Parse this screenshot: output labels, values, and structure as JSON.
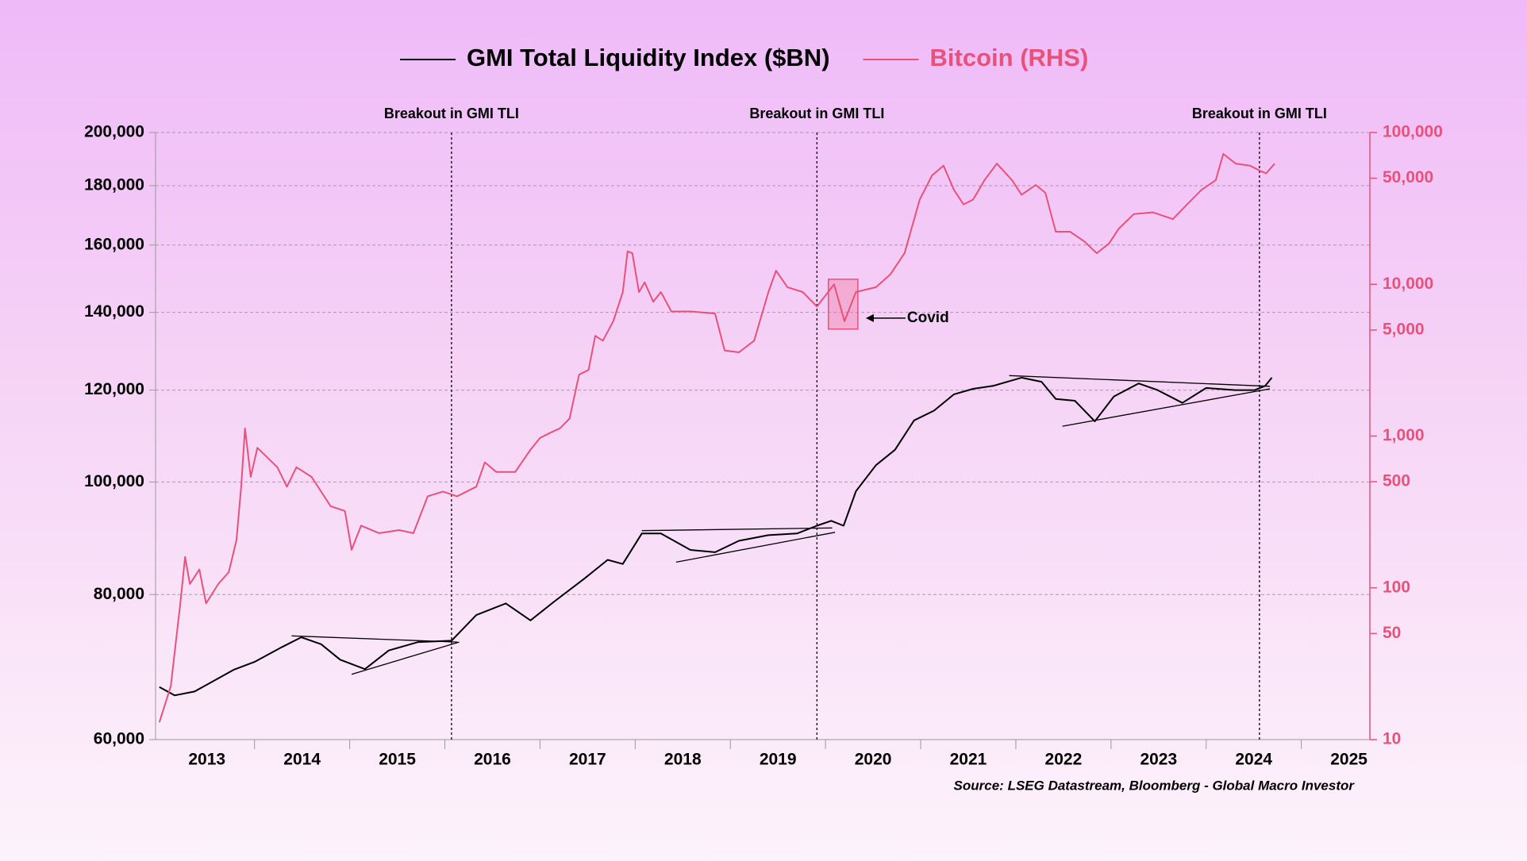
{
  "chart_data": {
    "type": "line",
    "legend": "top",
    "y_log": true,
    "y2_log": true,
    "grid": true,
    "xlim": [
      2012.96,
      2025.72
    ],
    "xticks": [
      {
        "value": 2013.5,
        "label": "2013"
      },
      {
        "value": 2014.5,
        "label": "2014"
      },
      {
        "value": 2015.5,
        "label": "2015"
      },
      {
        "value": 2016.5,
        "label": "2016"
      },
      {
        "value": 2017.5,
        "label": "2017"
      },
      {
        "value": 2018.5,
        "label": "2018"
      },
      {
        "value": 2019.5,
        "label": "2019"
      },
      {
        "value": 2020.5,
        "label": "2020"
      },
      {
        "value": 2021.5,
        "label": "2021"
      },
      {
        "value": 2022.5,
        "label": "2022"
      },
      {
        "value": 2023.5,
        "label": "2023"
      },
      {
        "value": 2024.5,
        "label": "2024"
      },
      {
        "value": 2025.5,
        "label": "2025"
      }
    ],
    "ylim": [
      60000,
      200000
    ],
    "yticks": [
      {
        "value": 60000,
        "label": "60,000"
      },
      {
        "value": 80000,
        "label": "80,000"
      },
      {
        "value": 100000,
        "label": "100,000"
      },
      {
        "value": 120000,
        "label": "120,000"
      },
      {
        "value": 140000,
        "label": "140,000"
      },
      {
        "value": 160000,
        "label": "160,000"
      },
      {
        "value": 180000,
        "label": "180,000"
      },
      {
        "value": 200000,
        "label": "200,000"
      }
    ],
    "y2lim": [
      10,
      100000
    ],
    "y2ticks": [
      10,
      50,
      100,
      500,
      {
        "value": 1000,
        "label": "1,000"
      },
      {
        "value": 5000,
        "label": "5,000"
      },
      {
        "value": 10000,
        "label": "10,000"
      },
      {
        "value": 50000,
        "label": "50,000"
      },
      {
        "value": 100000,
        "label": "100,000"
      }
    ],
    "series": [
      {
        "name": "GMI Total Liquidity Index ($BN)",
        "color": "#000000",
        "x": [
          2013.0,
          2013.16,
          2013.37,
          2013.57,
          2013.78,
          2014.0,
          2014.29,
          2014.49,
          2014.7,
          2014.9,
          2015.16,
          2015.41,
          2015.72,
          2016.07,
          2016.33,
          2016.64,
          2016.9,
          2017.15,
          2017.46,
          2017.71,
          2017.87,
          2018.07,
          2018.27,
          2018.58,
          2018.84,
          2019.09,
          2019.4,
          2019.7,
          2019.91,
          2020.06,
          2020.19,
          2020.32,
          2020.53,
          2020.73,
          2020.93,
          2021.14,
          2021.35,
          2021.55,
          2021.76,
          2022.06,
          2022.27,
          2022.42,
          2022.62,
          2022.83,
          2023.03,
          2023.29,
          2023.49,
          2023.75,
          2024.0,
          2024.31,
          2024.51,
          2024.62,
          2024.69
        ],
        "values": [
          66600,
          65500,
          66000,
          67400,
          68900,
          70000,
          72100,
          73500,
          72500,
          70300,
          69000,
          71600,
          72800,
          73000,
          76800,
          78600,
          76000,
          78900,
          82500,
          85700,
          85000,
          90300,
          90300,
          87400,
          87000,
          89000,
          90000,
          90300,
          91700,
          92600,
          91700,
          98200,
          103400,
          106600,
          113000,
          115200,
          119000,
          120300,
          121000,
          123000,
          122000,
          117900,
          117500,
          112800,
          118500,
          121600,
          120000,
          117000,
          120500,
          120000,
          120000,
          121000,
          123000
        ]
      },
      {
        "name": "Bitcoin (RHS)",
        "color": "#e8517a",
        "axis": "y2",
        "x": [
          2013.0,
          2013.12,
          2013.22,
          2013.27,
          2013.32,
          2013.42,
          2013.49,
          2013.62,
          2013.73,
          2013.81,
          2013.86,
          2013.9,
          2013.96,
          2014.03,
          2014.24,
          2014.34,
          2014.44,
          2014.6,
          2014.8,
          2014.95,
          2015.02,
          2015.12,
          2015.31,
          2015.52,
          2015.67,
          2015.82,
          2015.98,
          2016.13,
          2016.33,
          2016.42,
          2016.54,
          2016.74,
          2016.9,
          2017.0,
          2017.1,
          2017.21,
          2017.31,
          2017.41,
          2017.51,
          2017.58,
          2017.66,
          2017.77,
          2017.87,
          2017.92,
          2017.97,
          2018.04,
          2018.1,
          2018.19,
          2018.27,
          2018.38,
          2018.58,
          2018.84,
          2018.94,
          2019.09,
          2019.25,
          2019.4,
          2019.48,
          2019.6,
          2019.76,
          2019.91,
          2020.09,
          2020.2,
          2020.32,
          2020.53,
          2020.68,
          2020.83,
          2020.99,
          2021.12,
          2021.24,
          2021.35,
          2021.45,
          2021.55,
          2021.67,
          2021.8,
          2021.96,
          2022.06,
          2022.21,
          2022.31,
          2022.42,
          2022.57,
          2022.72,
          2022.85,
          2022.98,
          2023.08,
          2023.24,
          2023.44,
          2023.65,
          2023.8,
          2023.95,
          2024.1,
          2024.18,
          2024.31,
          2024.46,
          2024.56,
          2024.63,
          2024.72
        ],
        "values": [
          13,
          22.5,
          79,
          160,
          106,
          132,
          79,
          106,
          127,
          206,
          464,
          1125,
          538,
          837,
          623,
          464,
          623,
          538,
          345,
          321,
          178,
          257,
          229,
          240,
          229,
          401,
          431,
          401,
          464,
          671,
          580,
          580,
          813,
          971,
          1045,
          1125,
          1304,
          2535,
          2729,
          4573,
          4250,
          5707,
          8887,
          16500,
          16030,
          8887,
          10300,
          7670,
          8890,
          6620,
          6620,
          6420,
          3665,
          3560,
          4250,
          8890,
          12300,
          9570,
          8890,
          7130,
          10000,
          5707,
          8890,
          9570,
          11600,
          16030,
          36100,
          52200,
          60500,
          41900,
          33600,
          36100,
          48500,
          62400,
          48500,
          38900,
          45100,
          40100,
          22200,
          22200,
          19150,
          16030,
          18600,
          23200,
          29000,
          29800,
          26900,
          33600,
          41900,
          48500,
          72300,
          62400,
          60500,
          56200,
          53800,
          62400
        ]
      }
    ],
    "annotations": [
      {
        "text": "Breakout in GMI TLI",
        "x": 2016.07
      },
      {
        "text": "Breakout in GMI TLI",
        "x": 2019.91
      },
      {
        "text": "Breakout in GMI TLI",
        "x": 2024.56
      }
    ],
    "covid": {
      "text": "Covid",
      "x": [
        2020.03,
        2020.34
      ],
      "y": [
        5070,
        10800
      ]
    },
    "trend_lines": [
      {
        "x": [
          2014.39,
          2016.13
        ],
        "values": [
          73700,
          72800
        ]
      },
      {
        "x": [
          2015.02,
          2016.15
        ],
        "values": [
          68300,
          72800
        ]
      },
      {
        "x": [
          2018.07,
          2020.07
        ],
        "values": [
          90800,
          91300
        ]
      },
      {
        "x": [
          2018.43,
          2020.1
        ],
        "values": [
          85300,
          90500
        ]
      },
      {
        "x": [
          2021.93,
          2024.67
        ],
        "values": [
          123500,
          120900
        ]
      },
      {
        "x": [
          2022.49,
          2024.67
        ],
        "values": [
          111700,
          120300
        ]
      }
    ],
    "source": "Source: LSEG Datastream, Bloomberg - Global Macro Investor"
  }
}
